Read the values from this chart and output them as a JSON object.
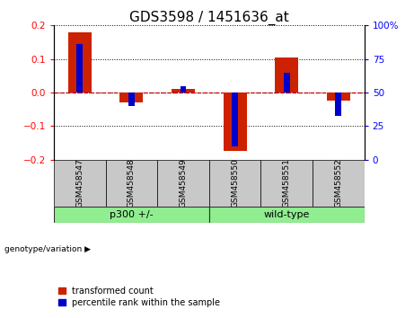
{
  "title": "GDS3598 / 1451636_at",
  "samples": [
    "GSM458547",
    "GSM458548",
    "GSM458549",
    "GSM458550",
    "GSM458551",
    "GSM458552"
  ],
  "red_values": [
    0.18,
    -0.03,
    0.01,
    -0.175,
    0.105,
    -0.025
  ],
  "blue_values": [
    0.145,
    -0.04,
    0.02,
    -0.16,
    0.06,
    -0.07
  ],
  "ylim": [
    -0.2,
    0.2
  ],
  "yticks_left": [
    -0.2,
    -0.1,
    0.0,
    0.1,
    0.2
  ],
  "red_bar_width": 0.45,
  "blue_bar_width": 0.12,
  "red_color": "#cc2200",
  "blue_color": "#0000cc",
  "zero_line_color": "#cc0000",
  "grid_color": "#000000",
  "bg_xticklabels": "#c8c8c8",
  "bg_group": "#90ee90",
  "title_fontsize": 11,
  "tick_fontsize": 7.5,
  "label_fontsize": 6.5,
  "group_fontsize": 8,
  "legend_fontsize": 7
}
